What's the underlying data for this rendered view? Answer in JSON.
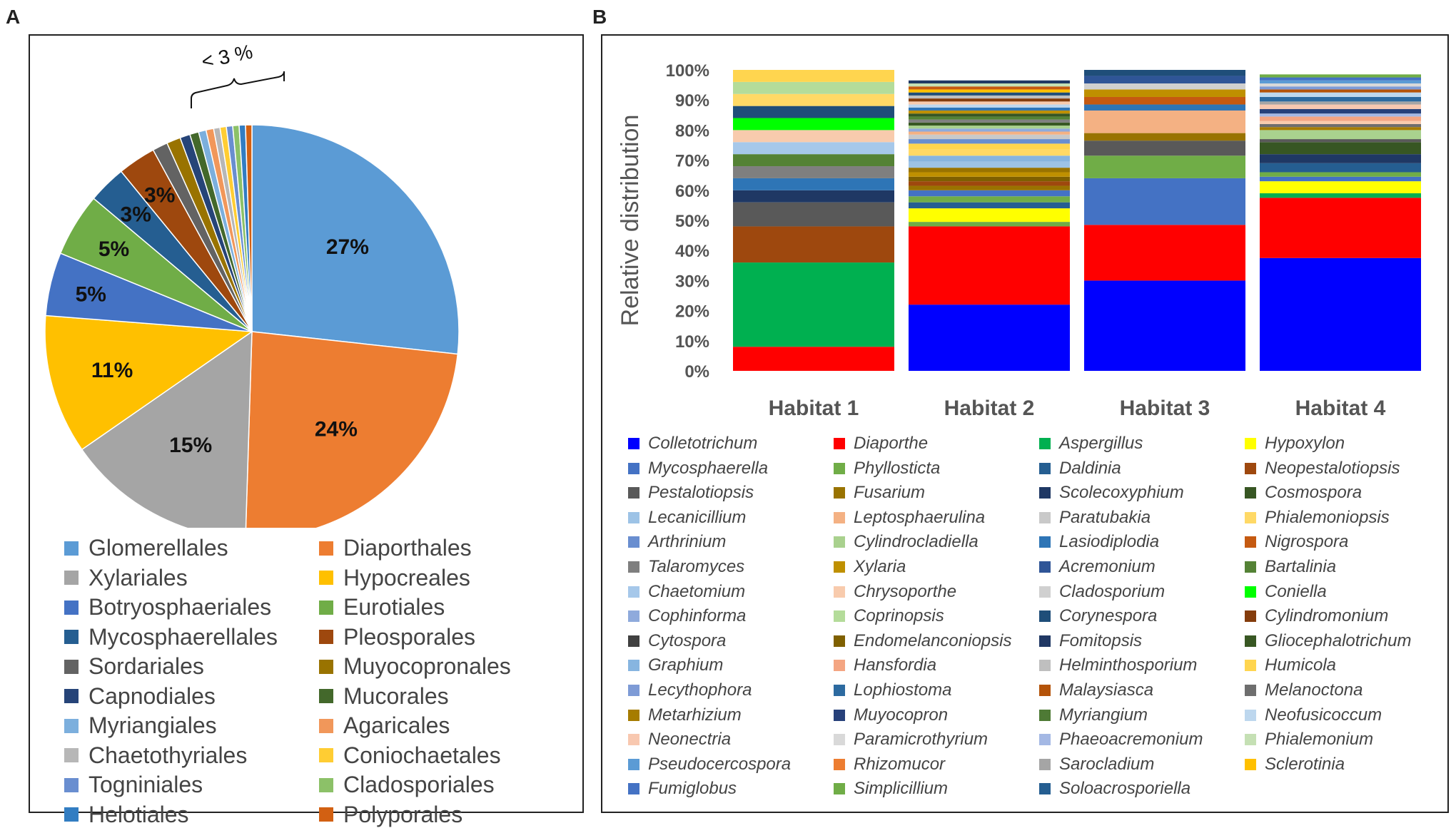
{
  "panels": {
    "a_label": "A",
    "b_label": "B"
  },
  "chart_data": [
    {
      "type": "pie",
      "panel": "A",
      "bracket_label": "< 3 %",
      "slices": [
        {
          "name": "Glomerellales",
          "value": 27,
          "label": "27%",
          "color": "#5B9BD5"
        },
        {
          "name": "Diaporthales",
          "value": 24,
          "label": "24%",
          "color": "#ED7D31"
        },
        {
          "name": "Xylariales",
          "value": 15,
          "label": "15%",
          "color": "#A5A5A5"
        },
        {
          "name": "Hypocreales",
          "value": 11,
          "label": "11%",
          "color": "#FFC000"
        },
        {
          "name": "Botryosphaeriales",
          "value": 5,
          "label": "5%",
          "color": "#4472C4"
        },
        {
          "name": "Eurotiales",
          "value": 5,
          "label": "5%",
          "color": "#70AD47"
        },
        {
          "name": "Mycosphaerellales",
          "value": 3,
          "label": "3%",
          "color": "#255E91"
        },
        {
          "name": "Pleosporales",
          "value": 3,
          "label": "3%",
          "color": "#9E480E"
        },
        {
          "name": "Sordariales",
          "value": 1.2,
          "label": "",
          "color": "#636363"
        },
        {
          "name": "Muyocopronales",
          "value": 1.1,
          "label": "",
          "color": "#997300"
        },
        {
          "name": "Capnodiales",
          "value": 0.8,
          "label": "",
          "color": "#264478"
        },
        {
          "name": "Mucorales",
          "value": 0.7,
          "label": "",
          "color": "#43682B"
        },
        {
          "name": "Myriangiales",
          "value": 0.6,
          "label": "",
          "color": "#7CAFDD"
        },
        {
          "name": "Agaricales",
          "value": 0.6,
          "label": "",
          "color": "#F1975A"
        },
        {
          "name": "Chaetothyriales",
          "value": 0.5,
          "label": "",
          "color": "#B7B7B7"
        },
        {
          "name": "Coniochaetales",
          "value": 0.5,
          "label": "",
          "color": "#FFCD33"
        },
        {
          "name": "Togniniales",
          "value": 0.5,
          "label": "",
          "color": "#698ED0"
        },
        {
          "name": "Cladosporiales",
          "value": 0.5,
          "label": "",
          "color": "#8CC168"
        },
        {
          "name": "Helotiales",
          "value": 0.5,
          "label": "",
          "color": "#327DC2"
        },
        {
          "name": "Polyporales",
          "value": 0.5,
          "label": "",
          "color": "#D26012"
        }
      ]
    },
    {
      "type": "stacked-bar",
      "panel": "B",
      "ylabel": "Relative distribution",
      "ylim": [
        0,
        100
      ],
      "yticks": [
        "0%",
        "10%",
        "20%",
        "30%",
        "40%",
        "50%",
        "60%",
        "70%",
        "80%",
        "90%",
        "100%"
      ],
      "categories": [
        "Habitat 1",
        "Habitat 2",
        "Habitat 3",
        "Habitat 4"
      ],
      "genera": [
        {
          "name": "Colletotrichum",
          "color": "#0000FF"
        },
        {
          "name": "Diaporthe",
          "color": "#FF0000"
        },
        {
          "name": "Aspergillus",
          "color": "#00B050"
        },
        {
          "name": "Hypoxylon",
          "color": "#FFFF00"
        },
        {
          "name": "Mycosphaerella",
          "color": "#4472C4"
        },
        {
          "name": "Phyllosticta",
          "color": "#70AD47"
        },
        {
          "name": "Daldinia",
          "color": "#255E91"
        },
        {
          "name": "Neopestalotiopsis",
          "color": "#9E480E"
        },
        {
          "name": "Pestalotiopsis",
          "color": "#595959"
        },
        {
          "name": "Fusarium",
          "color": "#997300"
        },
        {
          "name": "Scolecoxyphium",
          "color": "#1F3864"
        },
        {
          "name": "Cosmospora",
          "color": "#375623"
        },
        {
          "name": "Lecanicillium",
          "color": "#9DC3E6"
        },
        {
          "name": "Leptosphaerulina",
          "color": "#F4B183"
        },
        {
          "name": "Paratubakia",
          "color": "#C9C9C9"
        },
        {
          "name": "Phialemoniopsis",
          "color": "#FFD966"
        },
        {
          "name": "Arthrinium",
          "color": "#698ED0"
        },
        {
          "name": "Cylindrocladiella",
          "color": "#A9D18E"
        },
        {
          "name": "Lasiodiplodia",
          "color": "#2E75B6"
        },
        {
          "name": "Nigrospora",
          "color": "#C55A11"
        },
        {
          "name": "Talaromyces",
          "color": "#7F7F7F"
        },
        {
          "name": "Xylaria",
          "color": "#BF9000"
        },
        {
          "name": "Acremonium",
          "color": "#2F5597"
        },
        {
          "name": "Bartalinia",
          "color": "#548235"
        },
        {
          "name": "Chaetomium",
          "color": "#A6C8EA"
        },
        {
          "name": "Chrysoporthe",
          "color": "#F8CBAD"
        },
        {
          "name": "Cladosporium",
          "color": "#D0D0D0"
        },
        {
          "name": "Coniella",
          "color": "#00FF00"
        },
        {
          "name": "Cophinforma",
          "color": "#8FAADC"
        },
        {
          "name": "Coprinopsis",
          "color": "#B4DC9A"
        },
        {
          "name": "Corynespora",
          "color": "#1F4E79"
        },
        {
          "name": "Cylindromonium",
          "color": "#843C0C"
        },
        {
          "name": "Cytospora",
          "color": "#404040"
        },
        {
          "name": "Endomelanconiopsis",
          "color": "#7F6000"
        },
        {
          "name": "Fomitopsis",
          "color": "#203864"
        },
        {
          "name": "Gliocephalotrichum",
          "color": "#385723"
        },
        {
          "name": "Graphium",
          "color": "#87B5E0"
        },
        {
          "name": "Hansfordia",
          "color": "#F4A582"
        },
        {
          "name": "Helminthosporium",
          "color": "#BFBFBF"
        },
        {
          "name": "Humicola",
          "color": "#FFD54F"
        },
        {
          "name": "Lecythophora",
          "color": "#7E9BD6"
        },
        {
          "name": "Lophiostoma",
          "color": "#2C6AA0"
        },
        {
          "name": "Malaysiasca",
          "color": "#B45309"
        },
        {
          "name": "Melanoctona",
          "color": "#6E6E6E"
        },
        {
          "name": "Metarhizium",
          "color": "#A67C00"
        },
        {
          "name": "Muyocopron",
          "color": "#27417A"
        },
        {
          "name": "Myriangium",
          "color": "#4E7A35"
        },
        {
          "name": "Neofusicoccum",
          "color": "#BDD7EE"
        },
        {
          "name": "Neonectria",
          "color": "#F8C8B0"
        },
        {
          "name": "Paramicrothyrium",
          "color": "#D9D9D9"
        },
        {
          "name": "Phaeoacremonium",
          "color": "#A4B8E4"
        },
        {
          "name": "Phialemonium",
          "color": "#C5E0B4"
        },
        {
          "name": "Pseudocercospora",
          "color": "#5B9BD5"
        },
        {
          "name": "Rhizomucor",
          "color": "#ED7D31"
        },
        {
          "name": "Sarocladium",
          "color": "#A5A5A5"
        },
        {
          "name": "Sclerotinia",
          "color": "#FFC000"
        },
        {
          "name": "Fumiglobus",
          "color": "#4472C4"
        },
        {
          "name": "Simplicillium",
          "color": "#70AD47"
        },
        {
          "name": "Soloacrosporiella",
          "color": "#255E91"
        }
      ],
      "stacks": [
        {
          "habitat": "Habitat 1",
          "segments": [
            {
              "genus": "Diaporthe",
              "value": 8
            },
            {
              "genus": "Aspergillus",
              "value": 28
            },
            {
              "genus": "Neopestalotiopsis",
              "value": 12
            },
            {
              "genus": "Pestalotiopsis",
              "value": 8
            },
            {
              "genus": "Scolecoxyphium",
              "value": 4
            },
            {
              "genus": "Lasiodiplodia",
              "value": 4
            },
            {
              "genus": "Talaromyces",
              "value": 4
            },
            {
              "genus": "Bartalinia",
              "value": 4
            },
            {
              "genus": "Chaetomium",
              "value": 4
            },
            {
              "genus": "Chrysoporthe",
              "value": 4
            },
            {
              "genus": "Coniella",
              "value": 4
            },
            {
              "genus": "Corynespora",
              "value": 4
            },
            {
              "genus": "Phialemoniopsis",
              "value": 4
            },
            {
              "genus": "Coprinopsis",
              "value": 4
            },
            {
              "genus": "Humicola",
              "value": 4
            }
          ]
        },
        {
          "habitat": "Habitat 2",
          "segments": [
            {
              "genus": "Colletotrichum",
              "value": 22
            },
            {
              "genus": "Diaporthe",
              "value": 26
            },
            {
              "genus": "Phyllosticta",
              "value": 1.5
            },
            {
              "genus": "Hypoxylon",
              "value": 4.5
            },
            {
              "genus": "Daldinia",
              "value": 2
            },
            {
              "genus": "Phyllosticta",
              "value": 2
            },
            {
              "genus": "Mycosphaerella",
              "value": 2
            },
            {
              "genus": "Fusarium",
              "value": 1.5
            },
            {
              "genus": "Neopestalotiopsis",
              "value": 1.5
            },
            {
              "genus": "Endomelanconiopsis",
              "value": 1.5
            },
            {
              "genus": "Xylaria",
              "value": 1.5
            },
            {
              "genus": "Fusarium",
              "value": 1.5
            },
            {
              "genus": "Lecanicillium",
              "value": 2
            },
            {
              "genus": "Graphium",
              "value": 2
            },
            {
              "genus": "Phialemoniopsis",
              "value": 2
            },
            {
              "genus": "Humicola",
              "value": 2
            },
            {
              "genus": "Arthrinium",
              "value": 1.5
            },
            {
              "genus": "Paratubakia",
              "value": 1.5
            },
            {
              "genus": "Leptosphaerulina",
              "value": 1
            },
            {
              "genus": "Cophinforma",
              "value": 1
            },
            {
              "genus": "Cylindrocladiella",
              "value": 1
            },
            {
              "genus": "Gliocephalotrichum",
              "value": 1
            },
            {
              "genus": "Talaromyces",
              "value": 1
            },
            {
              "genus": "Bartalinia",
              "value": 1
            },
            {
              "genus": "Cosmospora",
              "value": 1
            },
            {
              "genus": "Xylaria",
              "value": 1
            },
            {
              "genus": "Lasiodiplodia",
              "value": 1
            },
            {
              "genus": "Neofusicoccum",
              "value": 1
            },
            {
              "genus": "Chrysoporthe",
              "value": 1
            },
            {
              "genus": "Cylindromonium",
              "value": 1
            },
            {
              "genus": "Helminthosporium",
              "value": 1
            },
            {
              "genus": "Corynespora",
              "value": 1
            },
            {
              "genus": "Sclerotinia",
              "value": 1
            },
            {
              "genus": "Nigrospora",
              "value": 1
            },
            {
              "genus": "Phialemonium",
              "value": 1
            },
            {
              "genus": "Fomitopsis",
              "value": 1
            }
          ]
        },
        {
          "habitat": "Habitat 3",
          "segments": [
            {
              "genus": "Colletotrichum",
              "value": 30
            },
            {
              "genus": "Diaporthe",
              "value": 18.5
            },
            {
              "genus": "Mycosphaerella",
              "value": 15.5
            },
            {
              "genus": "Phyllosticta",
              "value": 7.5
            },
            {
              "genus": "Pestalotiopsis",
              "value": 5
            },
            {
              "genus": "Fusarium",
              "value": 2.5
            },
            {
              "genus": "Leptosphaerulina",
              "value": 7.5
            },
            {
              "genus": "Lasiodiplodia",
              "value": 2
            },
            {
              "genus": "Nigrospora",
              "value": 2.5
            },
            {
              "genus": "Xylaria",
              "value": 2.5
            },
            {
              "genus": "Cladosporium",
              "value": 2
            },
            {
              "genus": "Acremonium",
              "value": 2.5
            },
            {
              "genus": "Corynespora",
              "value": 2
            }
          ]
        },
        {
          "habitat": "Habitat 4",
          "segments": [
            {
              "genus": "Colletotrichum",
              "value": 37.5
            },
            {
              "genus": "Diaporthe",
              "value": 20
            },
            {
              "genus": "Aspergillus",
              "value": 1.5
            },
            {
              "genus": "Hypoxylon",
              "value": 4
            },
            {
              "genus": "Mycosphaerella",
              "value": 1.5
            },
            {
              "genus": "Phyllosticta",
              "value": 1.5
            },
            {
              "genus": "Daldinia",
              "value": 3
            },
            {
              "genus": "Scolecoxyphium",
              "value": 3
            },
            {
              "genus": "Cosmospora",
              "value": 4
            },
            {
              "genus": "Pestalotiopsis",
              "value": 1
            },
            {
              "genus": "Cylindrocladiella",
              "value": 3
            },
            {
              "genus": "Metarhizium",
              "value": 1
            },
            {
              "genus": "Melanoctona",
              "value": 1
            },
            {
              "genus": "Chrysoporthe",
              "value": 1
            },
            {
              "genus": "Hansfordia",
              "value": 1.5
            },
            {
              "genus": "Phaeoacremonium",
              "value": 1
            },
            {
              "genus": "Muyocopron",
              "value": 1.5
            },
            {
              "genus": "Neonectria",
              "value": 1.5
            },
            {
              "genus": "Sarocladium",
              "value": 1
            },
            {
              "genus": "Lophiostoma",
              "value": 1.5
            },
            {
              "genus": "Neofusicoccum",
              "value": 1.5
            },
            {
              "genus": "Malaysiasca",
              "value": 1
            },
            {
              "genus": "Lecythophora",
              "value": 1
            },
            {
              "genus": "Paramicrothyrium",
              "value": 1
            },
            {
              "genus": "Pseudocercospora",
              "value": 1
            },
            {
              "genus": "Fumiglobus",
              "value": 1
            },
            {
              "genus": "Simplicillium",
              "value": 1
            }
          ]
        }
      ]
    }
  ]
}
